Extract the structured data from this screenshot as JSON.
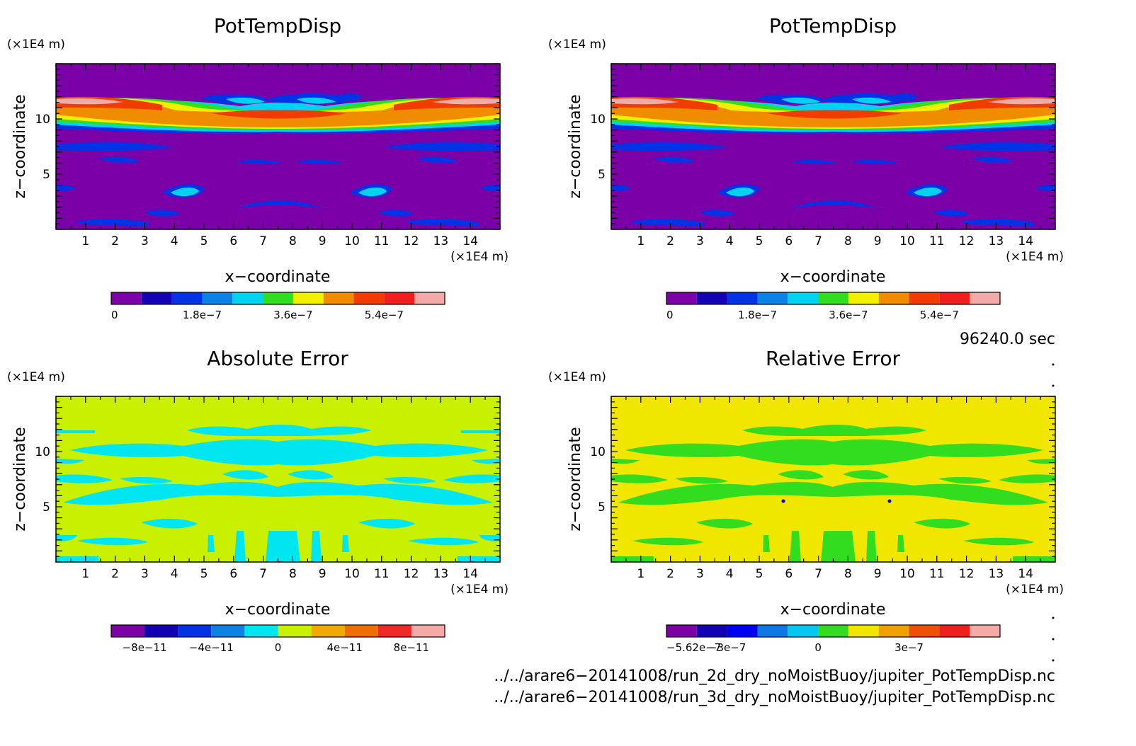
{
  "panels": [
    {
      "id": "p1",
      "title": "PotTempDisp",
      "xlabel": "x−coordinate",
      "ylabel": "z−coordinate",
      "x_unit": "(×1E4 m)",
      "y_unit": "(×1E4 m)",
      "colorbar": {
        "colors": [
          "#7c00a8",
          "#1400b4",
          "#0032e6",
          "#0a82e6",
          "#00d2f0",
          "#32dc1e",
          "#f0f000",
          "#f08c00",
          "#f03c00",
          "#f01e1e",
          "#f5aaaa"
        ],
        "labels": [
          "0",
          "1.8e−7",
          "3.6e−7",
          "5.4e−7"
        ],
        "label_positions": [
          0,
          3,
          6,
          9
        ],
        "label_offset": 0
      }
    },
    {
      "id": "p2",
      "title": "PotTempDisp",
      "xlabel": "x−coordinate",
      "ylabel": "z−coordinate",
      "x_unit": "(×1E4 m)",
      "y_unit": "(×1E4 m)",
      "colorbar": {
        "colors": [
          "#7c00a8",
          "#1400b4",
          "#0032e6",
          "#0a82e6",
          "#00d2f0",
          "#32dc1e",
          "#f0f000",
          "#f08c00",
          "#f03c00",
          "#f01e1e",
          "#f5aaaa"
        ],
        "labels": [
          "0",
          "1.8e−7",
          "3.6e−7",
          "5.4e−7"
        ],
        "label_positions": [
          0,
          3,
          6,
          9
        ],
        "label_offset": 0
      }
    },
    {
      "id": "p3",
      "title": "Absolute Error",
      "xlabel": "x−coordinate",
      "ylabel": "z−coordinate",
      "x_unit": "(×1E4 m)",
      "y_unit": "(×1E4 m)",
      "colorbar": {
        "colors": [
          "#7c00a8",
          "#1400b4",
          "#0032e6",
          "#0a82e6",
          "#00e6f0",
          "#c8f000",
          "#f0aa00",
          "#f06e00",
          "#f02828",
          "#f5aaaa"
        ],
        "labels": [
          "−8e−11",
          "−4e−11",
          "0",
          "4e−11",
          "8e−11"
        ],
        "label_positions": [
          1,
          3,
          5,
          7,
          9
        ],
        "label_offset": 0
      }
    },
    {
      "id": "p4",
      "title": "Relative Error",
      "xlabel": "x−coordinate",
      "ylabel": "z−coordinate",
      "x_unit": "(×1E4 m)",
      "y_unit": "(×1E4 m)",
      "colorbar": {
        "colors": [
          "#7c00a8",
          "#1400b4",
          "#0000f0",
          "#0a78e6",
          "#00c8f0",
          "#32dc1e",
          "#f0e600",
          "#f0a000",
          "#f05000",
          "#f01e1e",
          "#f5aaaa"
        ],
        "labels": [
          "−5.62e−7",
          "−3e−7",
          "0",
          "3e−7"
        ],
        "label_positions": [
          0,
          2,
          5,
          8
        ],
        "label_offset": 0
      }
    }
  ],
  "time_label": "96240.0 sec",
  "footer": [
    "../../arare6−20141008/run_2d_dry_noMoistBuoy/jupiter_PotTempDisp.nc",
    "../../arare6−20141008/run_3d_dry_noMoistBuoy/jupiter_PotTempDisp.nc"
  ],
  "chart_data": [
    {
      "type": "heatmap",
      "title": "PotTempDisp",
      "xlabel": "x−coordinate",
      "ylabel": "z−coordinate",
      "x_ticks": [
        1,
        2,
        3,
        4,
        5,
        6,
        7,
        8,
        9,
        10,
        11,
        12,
        13,
        14
      ],
      "y_ticks": [
        5,
        10
      ],
      "xlim": [
        0,
        15
      ],
      "ylim": [
        0,
        15
      ],
      "color_levels": [
        0,
        6e-08,
        1.2e-07,
        1.8e-07,
        2.4e-07,
        3e-07,
        3.6e-07,
        4.2e-07,
        4.8e-07,
        5.4e-07,
        6e-07
      ],
      "features": [
        {
          "x_center": 1.2,
          "z_center": 11.5,
          "value": 6e-07
        },
        {
          "x_center": 13.8,
          "z_center": 11.5,
          "value": 6e-07
        },
        {
          "x_center": 7.5,
          "z_center": 10.0,
          "value": 5.4e-07
        },
        {
          "x_center": 7.5,
          "z_center": 12.0,
          "value": 1.2e-07
        },
        {
          "x_center": 4.0,
          "z_center": 3.3,
          "value": 1.8e-07
        },
        {
          "x_center": 11.0,
          "z_center": 3.3,
          "value": 1.8e-07
        }
      ]
    },
    {
      "type": "heatmap",
      "title": "PotTempDisp",
      "xlabel": "x−coordinate",
      "ylabel": "z−coordinate",
      "x_ticks": [
        1,
        2,
        3,
        4,
        5,
        6,
        7,
        8,
        9,
        10,
        11,
        12,
        13,
        14
      ],
      "y_ticks": [
        5,
        10
      ],
      "xlim": [
        0,
        15
      ],
      "ylim": [
        0,
        15
      ],
      "color_levels": [
        0,
        6e-08,
        1.2e-07,
        1.8e-07,
        2.4e-07,
        3e-07,
        3.6e-07,
        4.2e-07,
        4.8e-07,
        5.4e-07,
        6e-07
      ],
      "features": [
        {
          "x_center": 1.2,
          "z_center": 11.5,
          "value": 6e-07
        },
        {
          "x_center": 13.8,
          "z_center": 11.5,
          "value": 6e-07
        },
        {
          "x_center": 7.5,
          "z_center": 10.0,
          "value": 5.4e-07
        },
        {
          "x_center": 7.5,
          "z_center": 12.0,
          "value": 1.2e-07
        },
        {
          "x_center": 4.0,
          "z_center": 3.3,
          "value": 1.8e-07
        },
        {
          "x_center": 11.0,
          "z_center": 3.3,
          "value": 1.8e-07
        }
      ]
    },
    {
      "type": "heatmap",
      "title": "Absolute Error",
      "xlabel": "x−coordinate",
      "ylabel": "z−coordinate",
      "x_ticks": [
        1,
        2,
        3,
        4,
        5,
        6,
        7,
        8,
        9,
        10,
        11,
        12,
        13,
        14
      ],
      "y_ticks": [
        5,
        10
      ],
      "xlim": [
        0,
        15
      ],
      "ylim": [
        0,
        15
      ],
      "color_levels": [
        -1e-10,
        -8e-11,
        -6e-11,
        -4e-11,
        -2e-11,
        0,
        2e-11,
        4e-11,
        6e-11,
        8e-11,
        1e-10
      ],
      "background_value": 1e-11,
      "features": [
        {
          "x_center": 7.5,
          "z_center": 10.0,
          "value": -1e-11
        },
        {
          "x_center": 7.5,
          "z_center": 5.5,
          "value": -1e-11
        },
        {
          "x_center": 7.5,
          "z_center": 1.5,
          "value": -1e-11
        }
      ]
    },
    {
      "type": "heatmap",
      "title": "Relative Error",
      "xlabel": "x−coordinate",
      "ylabel": "z−coordinate",
      "x_ticks": [
        1,
        2,
        3,
        4,
        5,
        6,
        7,
        8,
        9,
        10,
        11,
        12,
        13,
        14
      ],
      "y_ticks": [
        5,
        10
      ],
      "xlim": [
        0,
        15
      ],
      "ylim": [
        0,
        15
      ],
      "color_levels": [
        -5.62e-07,
        -4e-07,
        -3e-07,
        -2e-07,
        -1e-07,
        0,
        1e-07,
        2e-07,
        3e-07,
        4e-07,
        5e-07
      ],
      "background_value": 5e-08,
      "features": [
        {
          "x_center": 7.5,
          "z_center": 10.0,
          "value": -5e-08
        },
        {
          "x_center": 7.5,
          "z_center": 5.5,
          "value": -5e-08
        },
        {
          "x_center": 7.5,
          "z_center": 1.5,
          "value": -5e-08
        }
      ]
    }
  ]
}
